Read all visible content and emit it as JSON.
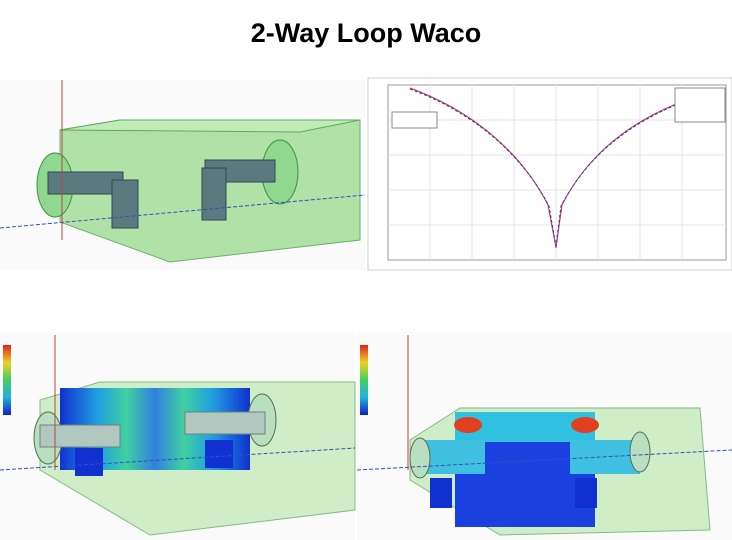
{
  "header": {
    "title": "2-Way Loop Waco"
  }
}
